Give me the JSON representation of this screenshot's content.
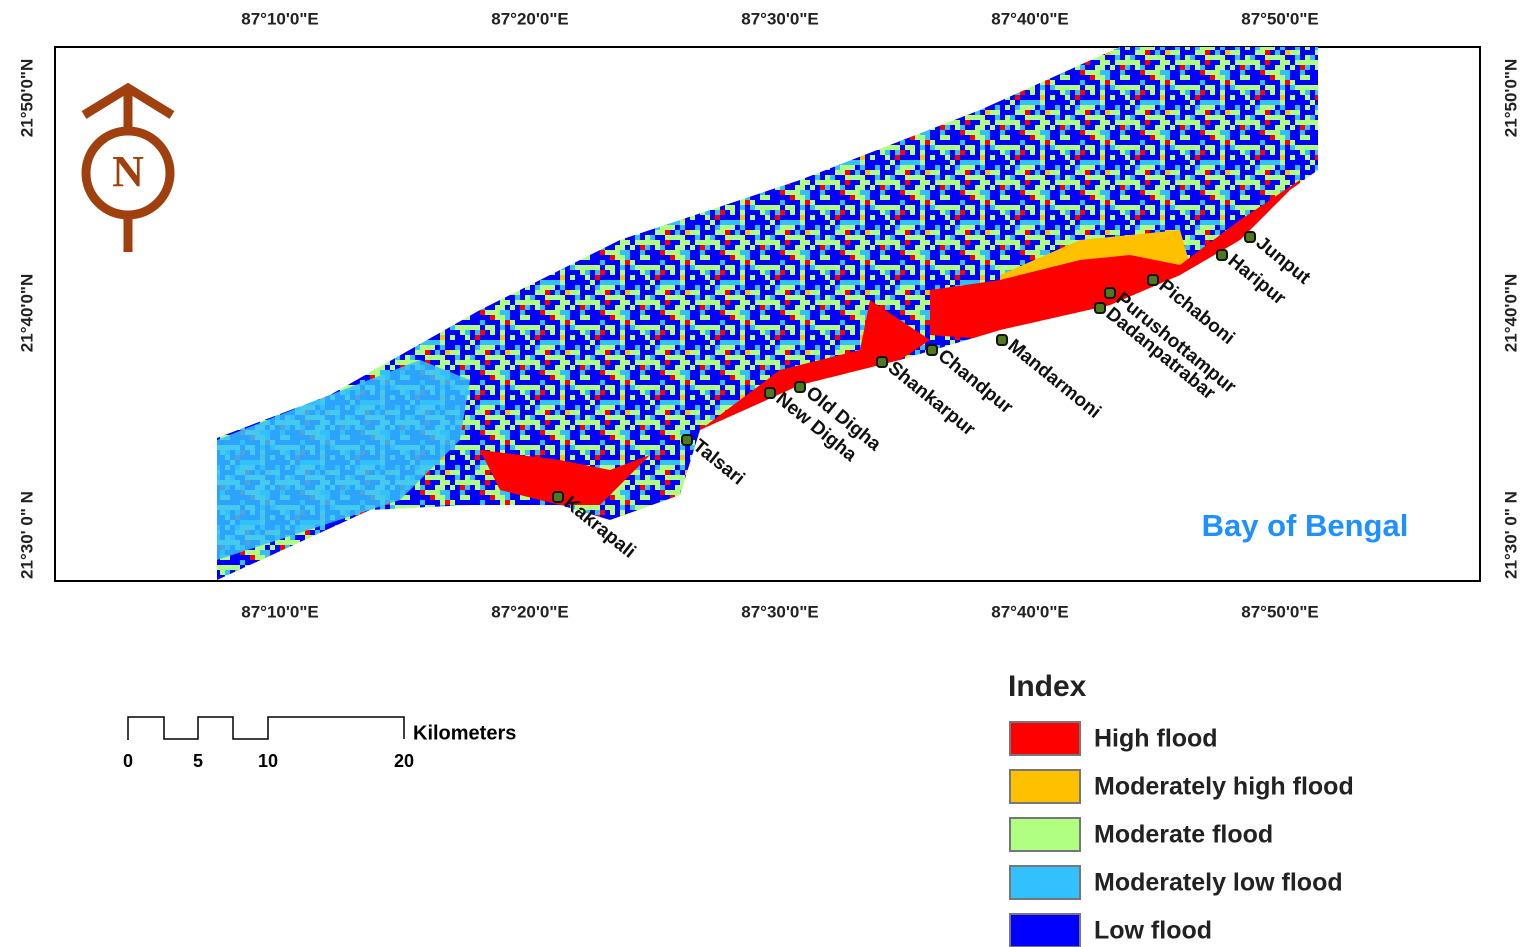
{
  "map": {
    "north_label": "N",
    "top_ticks": [
      "87°10'0\"E",
      "87°20'0\"E",
      "87°30'0\"E",
      "87°40'0\"E",
      "87°50'0\"E"
    ],
    "bottom_ticks": [
      "87°10'0\"E",
      "87°20'0\"E",
      "87°30'0\"E",
      "87°40'0\"E",
      "87°50'0\"E"
    ],
    "left_ticks": [
      "21°50'0\"N",
      "21°40'0\"N",
      "21°30' 0\" N"
    ],
    "right_ticks": [
      "21°50'0\"N",
      "21°40'0\"N",
      "21°30' 0\" N"
    ],
    "places": [
      "Kakrapali",
      "Talsari",
      "New Digha",
      "Old Digha",
      "Shankarpur",
      "Chandpur",
      "Mandarmoni",
      "Dadanpatrabar",
      "Purushottampur",
      "Pichaboni",
      "Haripur",
      "Junput"
    ],
    "sea_label": "Bay of Bengal",
    "scale_bar": {
      "ticks": [
        "0",
        "5",
        "10",
        "20"
      ],
      "unit": "Kilometers"
    },
    "legend": {
      "title": "Index",
      "items": [
        {
          "label": "High flood",
          "color": "#ff0000"
        },
        {
          "label": "Moderately high flood",
          "color": "#ffc000"
        },
        {
          "label": "Moderate flood",
          "color": "#b0ff80"
        },
        {
          "label": "Moderately low flood",
          "color": "#33c0ff"
        },
        {
          "label": "Low flood",
          "color": "#0000ff"
        }
      ]
    }
  }
}
